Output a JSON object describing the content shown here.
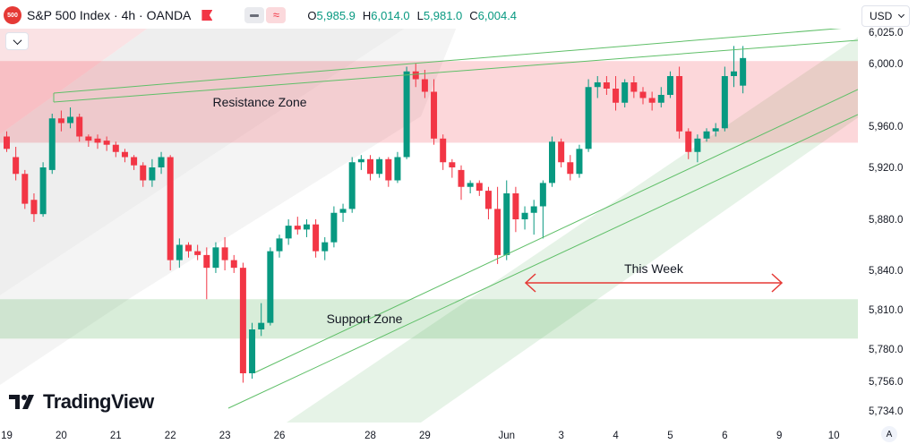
{
  "header": {
    "symbol_badge": "500",
    "title": "S&P 500 Index · 4h · OANDA",
    "ohlc": [
      {
        "label": "O",
        "value": "5,985.9"
      },
      {
        "label": "H",
        "value": "6,014.0"
      },
      {
        "label": "L",
        "value": "5,981.0"
      },
      {
        "label": "C",
        "value": "6,004.4"
      }
    ],
    "indicator_toggle_icon": "approx-icon"
  },
  "currency": "USD",
  "auto_label": "A",
  "logo_text": "TradingView",
  "colors": {
    "up": "#089981",
    "down": "#f23645",
    "resistance_zone": "#f23645",
    "support_zone": "#4caf50",
    "arrow": "#e53935"
  },
  "chart_data": {
    "type": "candlestick",
    "price_axis_labels": [
      {
        "text": "6,025.0",
        "value": 6025
      },
      {
        "text": "6,000.0",
        "value": 6000
      },
      {
        "text": "5,960.0",
        "value": 5960
      },
      {
        "text": "5,920.0",
        "value": 5920
      },
      {
        "text": "5,880.0",
        "value": 5880
      },
      {
        "text": "5,840.0",
        "value": 5840
      },
      {
        "text": "5,810.0",
        "value": 5810
      },
      {
        "text": "5,780.0",
        "value": 5780
      },
      {
        "text": "5,756.0",
        "value": 5756
      },
      {
        "text": "5,734.0",
        "value": 5734
      }
    ],
    "time_axis_labels": [
      {
        "text": "19",
        "index": 0
      },
      {
        "text": "20",
        "index": 6
      },
      {
        "text": "21",
        "index": 12
      },
      {
        "text": "22",
        "index": 18
      },
      {
        "text": "23",
        "index": 24
      },
      {
        "text": "26",
        "index": 30
      },
      {
        "text": "28",
        "index": 40
      },
      {
        "text": "29",
        "index": 46
      },
      {
        "text": "Jun",
        "index": 55
      },
      {
        "text": "3",
        "index": 61
      },
      {
        "text": "4",
        "index": 67
      },
      {
        "text": "5",
        "index": 73
      },
      {
        "text": "6",
        "index": 79
      },
      {
        "text": "9",
        "index": 85
      },
      {
        "text": "10",
        "index": 91
      }
    ],
    "candles": [
      [
        5950,
        5955,
        5935,
        5938
      ],
      [
        5930,
        5940,
        5910,
        5915
      ],
      [
        5915,
        5918,
        5888,
        5892
      ],
      [
        5895,
        5900,
        5878,
        5884
      ],
      [
        5884,
        5925,
        5882,
        5920
      ],
      [
        5918,
        5968,
        5915,
        5965
      ],
      [
        5965,
        5970,
        5955,
        5962
      ],
      [
        5962,
        5972,
        5958,
        5966
      ],
      [
        5966,
        5968,
        5945,
        5950
      ],
      [
        5950,
        5952,
        5940,
        5946
      ],
      [
        5948,
        5952,
        5938,
        5944
      ],
      [
        5946,
        5950,
        5936,
        5942
      ],
      [
        5942,
        5945,
        5930,
        5935
      ],
      [
        5935,
        5938,
        5925,
        5930
      ],
      [
        5930,
        5932,
        5918,
        5922
      ],
      [
        5922,
        5925,
        5905,
        5910
      ],
      [
        5910,
        5928,
        5905,
        5920
      ],
      [
        5920,
        5935,
        5915,
        5930
      ],
      [
        5930,
        5932,
        5840,
        5848
      ],
      [
        5848,
        5865,
        5842,
        5860
      ],
      [
        5860,
        5862,
        5850,
        5855
      ],
      [
        5855,
        5860,
        5848,
        5852
      ],
      [
        5852,
        5858,
        5818,
        5842
      ],
      [
        5842,
        5862,
        5838,
        5858
      ],
      [
        5858,
        5866,
        5840,
        5848
      ],
      [
        5848,
        5852,
        5838,
        5842
      ],
      [
        5842,
        5846,
        5755,
        5762
      ],
      [
        5762,
        5800,
        5758,
        5795
      ],
      [
        5795,
        5815,
        5790,
        5800
      ],
      [
        5800,
        5858,
        5798,
        5855
      ],
      [
        5855,
        5868,
        5850,
        5865
      ],
      [
        5865,
        5880,
        5860,
        5875
      ],
      [
        5875,
        5882,
        5868,
        5872
      ],
      [
        5872,
        5880,
        5866,
        5876
      ],
      [
        5876,
        5880,
        5850,
        5855
      ],
      [
        5855,
        5866,
        5848,
        5862
      ],
      [
        5862,
        5890,
        5858,
        5885
      ],
      [
        5885,
        5892,
        5878,
        5888
      ],
      [
        5888,
        5930,
        5885,
        5925
      ],
      [
        5925,
        5932,
        5918,
        5928
      ],
      [
        5928,
        5932,
        5910,
        5915
      ],
      [
        5915,
        5930,
        5912,
        5928
      ],
      [
        5928,
        5930,
        5905,
        5910
      ],
      [
        5910,
        5935,
        5908,
        5930
      ],
      [
        5930,
        5998,
        5928,
        5995
      ],
      [
        5995,
        6000,
        5985,
        5990
      ],
      [
        5990,
        5996,
        5978,
        5982
      ],
      [
        5982,
        5990,
        5942,
        5948
      ],
      [
        5948,
        5952,
        5918,
        5925
      ],
      [
        5925,
        5928,
        5912,
        5920
      ],
      [
        5918,
        5922,
        5895,
        5905
      ],
      [
        5905,
        5910,
        5900,
        5908
      ],
      [
        5908,
        5910,
        5898,
        5902
      ],
      [
        5902,
        5905,
        5880,
        5888
      ],
      [
        5888,
        5905,
        5845,
        5852
      ],
      [
        5852,
        5910,
        5848,
        5900
      ],
      [
        5900,
        5905,
        5870,
        5880
      ],
      [
        5880,
        5890,
        5872,
        5885
      ],
      [
        5885,
        5895,
        5868,
        5890
      ],
      [
        5890,
        5910,
        5865,
        5908
      ],
      [
        5908,
        5950,
        5905,
        5945
      ],
      [
        5945,
        5948,
        5920,
        5925
      ],
      [
        5925,
        5932,
        5910,
        5915
      ],
      [
        5915,
        5942,
        5912,
        5938
      ],
      [
        5938,
        5990,
        5935,
        5985
      ],
      [
        5985,
        5992,
        5978,
        5988
      ],
      [
        5988,
        5992,
        5980,
        5984
      ],
      [
        5984,
        5992,
        5970,
        5975
      ],
      [
        5975,
        5990,
        5972,
        5988
      ],
      [
        5988,
        5992,
        5978,
        5982
      ],
      [
        5982,
        5985,
        5974,
        5978
      ],
      [
        5978,
        5982,
        5970,
        5975
      ],
      [
        5975,
        5985,
        5972,
        5980
      ],
      [
        5980,
        5995,
        5978,
        5992
      ],
      [
        5992,
        5998,
        5948,
        5955
      ],
      [
        5955,
        5958,
        5928,
        5935
      ],
      [
        5935,
        5952,
        5925,
        5948
      ],
      [
        5948,
        5958,
        5945,
        5955
      ],
      [
        5955,
        5962,
        5950,
        5958
      ],
      [
        5958,
        5998,
        5955,
        5992
      ],
      [
        5992,
        6014,
        5985,
        5995
      ],
      [
        5985.9,
        6014,
        5981,
        6004.4
      ]
    ],
    "annotations": [
      {
        "text": "Resistance Zone",
        "type": "zone",
        "y_range": [
          5944,
          6002
        ]
      },
      {
        "text": "Support Zone",
        "type": "zone",
        "y_range": [
          5788,
          5818
        ]
      },
      {
        "text": "This Week",
        "type": "arrow"
      }
    ]
  }
}
